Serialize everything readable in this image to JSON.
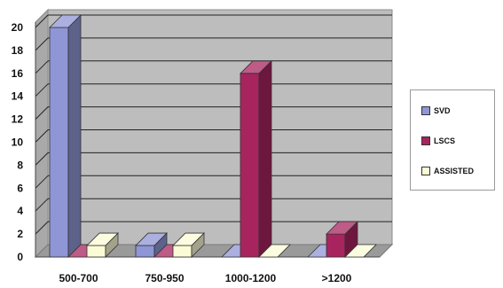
{
  "chart_data": {
    "type": "bar",
    "style": "3d-clustered-column",
    "categories": [
      "500-700",
      "750-950",
      "1000-1200",
      ">1200"
    ],
    "series": [
      {
        "name": "SVD",
        "values": [
          20,
          1,
          0,
          0
        ],
        "color": "#8f96d6"
      },
      {
        "name": "LSCS",
        "values": [
          0,
          0,
          16,
          2
        ],
        "color": "#a8245f"
      },
      {
        "name": "ASSISTED",
        "values": [
          1,
          1,
          0,
          0
        ],
        "color": "#fbfbd6"
      }
    ],
    "title": "",
    "xlabel": "",
    "ylabel": "",
    "ylim": [
      0,
      20
    ],
    "yticks": [
      0,
      2,
      4,
      6,
      8,
      10,
      12,
      14,
      16,
      18,
      20
    ],
    "grid": true,
    "legend": "right",
    "wall_color": "#bdbdbd"
  }
}
